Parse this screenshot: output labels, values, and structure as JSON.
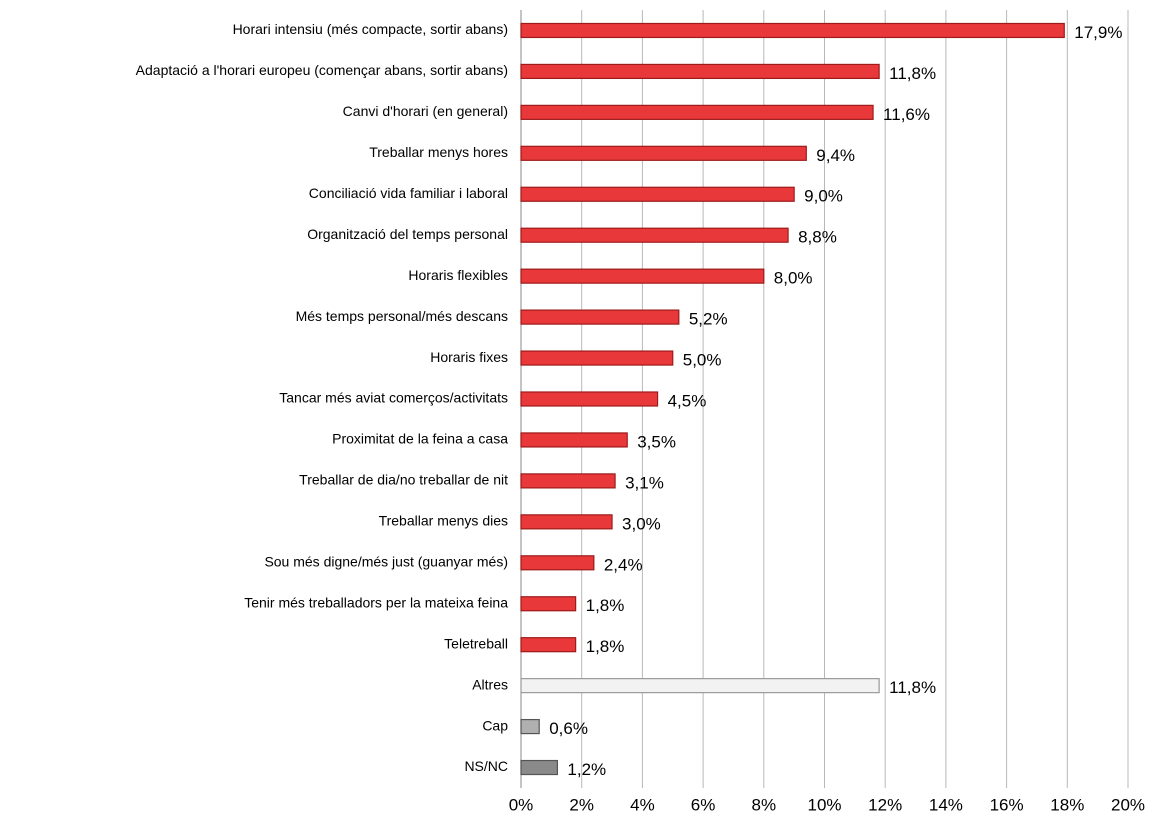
{
  "chart_data": {
    "type": "barh",
    "categories": [
      "Horari intensiu (més compacte, sortir abans)",
      "Adaptació a l'horari europeu (començar abans, sortir abans)",
      "Canvi d'horari (en general)",
      "Treballar menys hores",
      "Conciliació vida familiar i laboral",
      "Organització del temps personal",
      "Horaris flexibles",
      "Més temps personal/més descans",
      "Horaris fixes",
      "Tancar més aviat comerços/activitats",
      "Proximitat de la feina a casa",
      "Treballar de dia/no treballar de nit",
      "Treballar menys dies",
      "Sou més digne/més just (guanyar més)",
      "Tenir més treballadors per la mateixa feina",
      "Teletreball",
      "Altres",
      "Cap",
      "NS/NC"
    ],
    "values": [
      17.9,
      11.8,
      11.6,
      9.4,
      9.0,
      8.8,
      8.0,
      5.2,
      5.0,
      4.5,
      3.5,
      3.1,
      3.0,
      2.4,
      1.8,
      1.8,
      11.8,
      0.6,
      1.2
    ],
    "value_labels": [
      "17,9%",
      "11,8%",
      "11,6%",
      "9,4%",
      "9,0%",
      "8,8%",
      "8,0%",
      "5,2%",
      "5,0%",
      "4,5%",
      "3,5%",
      "3,1%",
      "3,0%",
      "2,4%",
      "1,8%",
      "1,8%",
      "11,8%",
      "0,6%",
      "1,2%"
    ],
    "colors": [
      "#e8383a",
      "#e8383a",
      "#e8383a",
      "#e8383a",
      "#e8383a",
      "#e8383a",
      "#e8383a",
      "#e8383a",
      "#e8383a",
      "#e8383a",
      "#e8383a",
      "#e8383a",
      "#e8383a",
      "#e8383a",
      "#e8383a",
      "#e8383a",
      "#f2f2f2",
      "#b0b0b0",
      "#8a8a8a"
    ],
    "xlim": [
      0,
      20
    ],
    "xticks": [
      {
        "value": 0,
        "label": "0%"
      },
      {
        "value": 2,
        "label": "2%"
      },
      {
        "value": 4,
        "label": "4%"
      },
      {
        "value": 6,
        "label": "6%"
      },
      {
        "value": 8,
        "label": "8%"
      },
      {
        "value": 10,
        "label": "10%"
      },
      {
        "value": 12,
        "label": "12%"
      },
      {
        "value": 14,
        "label": "14%"
      },
      {
        "value": 16,
        "label": "16%"
      },
      {
        "value": 18,
        "label": "18%"
      },
      {
        "value": 20,
        "label": "20%"
      }
    ],
    "grid": true
  }
}
